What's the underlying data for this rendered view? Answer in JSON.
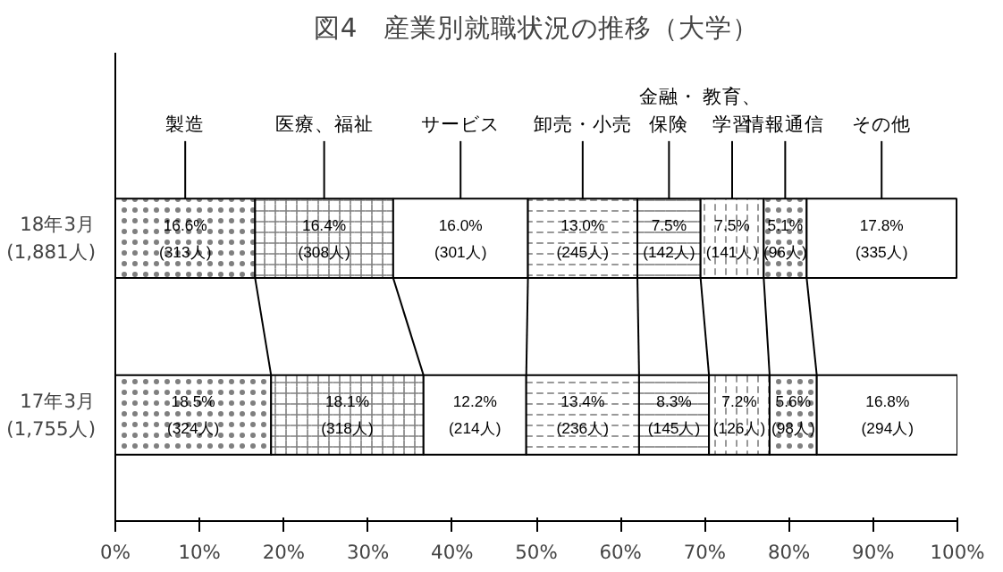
{
  "chart_data": {
    "type": "bar",
    "orientation": "horizontal",
    "stacked": true,
    "title": "図4　産業別就職状況の推移（大学）",
    "categories": [
      "18年3月\n(1,881人)",
      "17年3月\n(1,755人)"
    ],
    "xlim": [
      0,
      100
    ],
    "xticks": [
      {
        "value": 0,
        "label": "0%"
      },
      {
        "value": 10,
        "label": "10%"
      },
      {
        "value": 20,
        "label": "20%"
      },
      {
        "value": 30,
        "label": "30%"
      },
      {
        "value": 40,
        "label": "40%"
      },
      {
        "value": 50,
        "label": "50%"
      },
      {
        "value": 60,
        "label": "60%"
      },
      {
        "value": 70,
        "label": "70%"
      },
      {
        "value": 80,
        "label": "80%"
      },
      {
        "value": 90,
        "label": "90%"
      },
      {
        "value": 100,
        "label": "100%"
      }
    ],
    "legend": false,
    "grid": false,
    "series": [
      {
        "name": "製造",
        "color": "#ffffff",
        "values": [
          16.6,
          18.5
        ],
        "value_labels": [
          "16.6%\n(313人)",
          "18.5%\n(324人)"
        ]
      },
      {
        "name": "医療、福祉",
        "color": "#ffffff",
        "values": [
          16.4,
          18.1
        ],
        "value_labels": [
          "16.4%\n(308人)",
          "18.1%\n(318人)"
        ]
      },
      {
        "name": "サービス",
        "color": "#ffffff",
        "values": [
          16.0,
          12.2
        ],
        "value_labels": [
          "16.0%\n(301人)",
          "12.2%\n(214人)"
        ]
      },
      {
        "name": "卸売・小売",
        "color": "#ffffff",
        "values": [
          13.0,
          13.4
        ],
        "value_labels": [
          "13.0%\n(245人)",
          "13.4%\n(236人)"
        ]
      },
      {
        "name": "金融・保険",
        "color": "#ffffff",
        "values": [
          7.5,
          8.3
        ],
        "value_labels": [
          "7.5%\n(142人)",
          "8.3%\n(145人)"
        ]
      },
      {
        "name": "教育、学習",
        "color": "#ffffff",
        "values": [
          7.5,
          7.2
        ],
        "value_labels": [
          "7.5%\n(141人)",
          "7.2%\n(126人)"
        ]
      },
      {
        "name": "情報通信",
        "color": "#ffffff",
        "values": [
          5.1,
          5.6
        ],
        "value_labels": [
          "5.1%\n(96人)",
          "5.6%\n(98人)"
        ]
      },
      {
        "name": "その他",
        "color": "#ffffff",
        "values": [
          17.8,
          16.8
        ],
        "value_labels": [
          "17.8%\n(335人)",
          "16.8%\n(294人)"
        ]
      }
    ]
  }
}
